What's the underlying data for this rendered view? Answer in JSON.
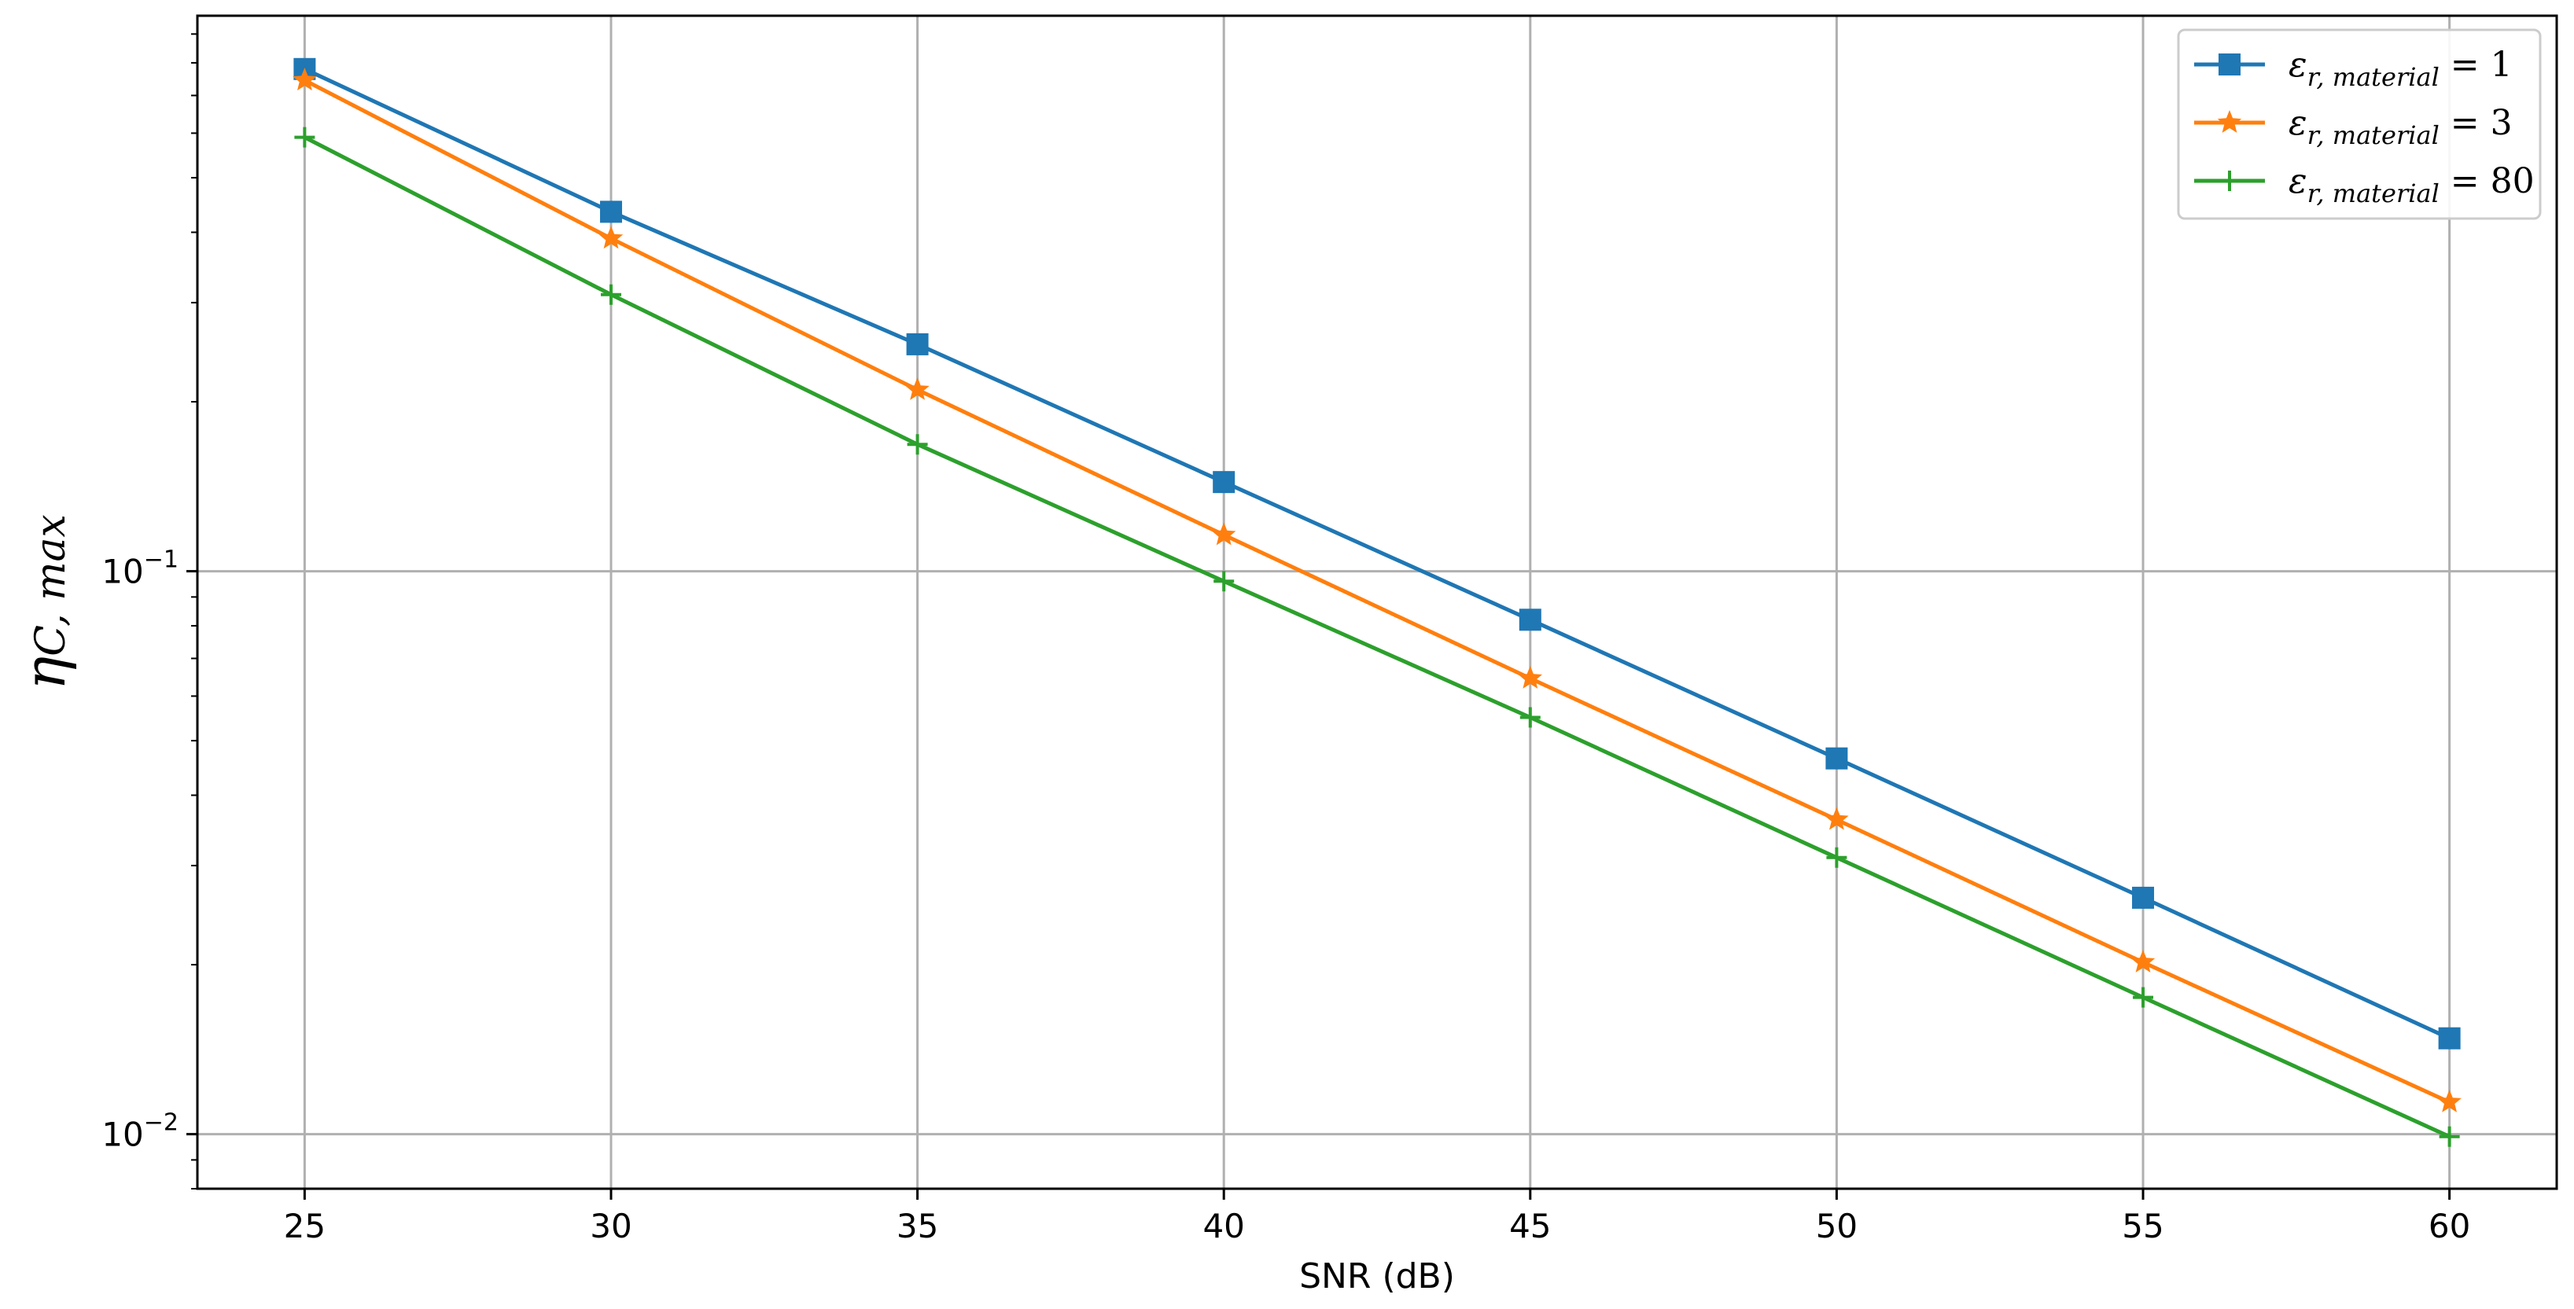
{
  "chart_data": {
    "type": "line",
    "title": "",
    "xlabel": "SNR (dB)",
    "ylabel": {
      "main": "η",
      "sub": "C, max"
    },
    "yscale": "log",
    "xlim": [
      23.25,
      61.75
    ],
    "ylim": [
      0.008,
      0.97
    ],
    "grid": true,
    "legend_position": "top-right",
    "x": [
      25,
      30,
      35,
      40,
      45,
      50,
      55,
      60
    ],
    "xticks": [
      25,
      30,
      35,
      40,
      45,
      50,
      55,
      60
    ],
    "yticks": [
      {
        "value": 0.1,
        "base": "10",
        "exp": "−1"
      },
      {
        "value": 0.01,
        "base": "10",
        "exp": "−2"
      }
    ],
    "series": [
      {
        "name": {
          "eps": "ε",
          "sub": "r, material",
          "eq": " = 1"
        },
        "color": "#1f77b4",
        "marker": "square",
        "values": [
          0.78,
          0.435,
          0.253,
          0.144,
          0.082,
          0.0465,
          0.0263,
          0.0148
        ]
      },
      {
        "name": {
          "eps": "ε",
          "sub": "r, material",
          "eq": " = 3"
        },
        "color": "#ff7f0e",
        "marker": "star",
        "values": [
          0.745,
          0.39,
          0.21,
          0.116,
          0.0645,
          0.0362,
          0.0202,
          0.0114
        ]
      },
      {
        "name": {
          "eps": "ε",
          "sub": "r, material",
          "eq": " = 80"
        },
        "color": "#2ca02c",
        "marker": "plus",
        "values": [
          0.59,
          0.31,
          0.168,
          0.096,
          0.055,
          0.031,
          0.0175,
          0.0099
        ]
      }
    ]
  }
}
